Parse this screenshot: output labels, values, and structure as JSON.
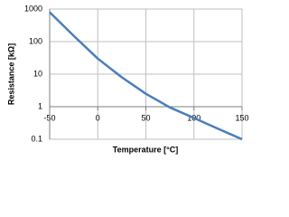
{
  "chart_data": {
    "type": "line",
    "x_label": "Temperature [°C]",
    "y_label": "Resistance [kΩ]",
    "x": [
      -50,
      -25,
      0,
      25,
      50,
      75,
      100,
      125,
      150
    ],
    "values": [
      800,
      150,
      30,
      8,
      2.5,
      0.95,
      0.45,
      0.21,
      0.1
    ],
    "color": "#4a7ebb",
    "xlim": [
      -50,
      150
    ],
    "xticks": [
      -50,
      0,
      50,
      100,
      150
    ],
    "ylim": [
      0.1,
      1000
    ],
    "yticks": [
      0.1,
      1,
      10,
      100,
      1000
    ],
    "log_scale": "y",
    "grid": true,
    "x_axis_crosses_at": 1
  }
}
